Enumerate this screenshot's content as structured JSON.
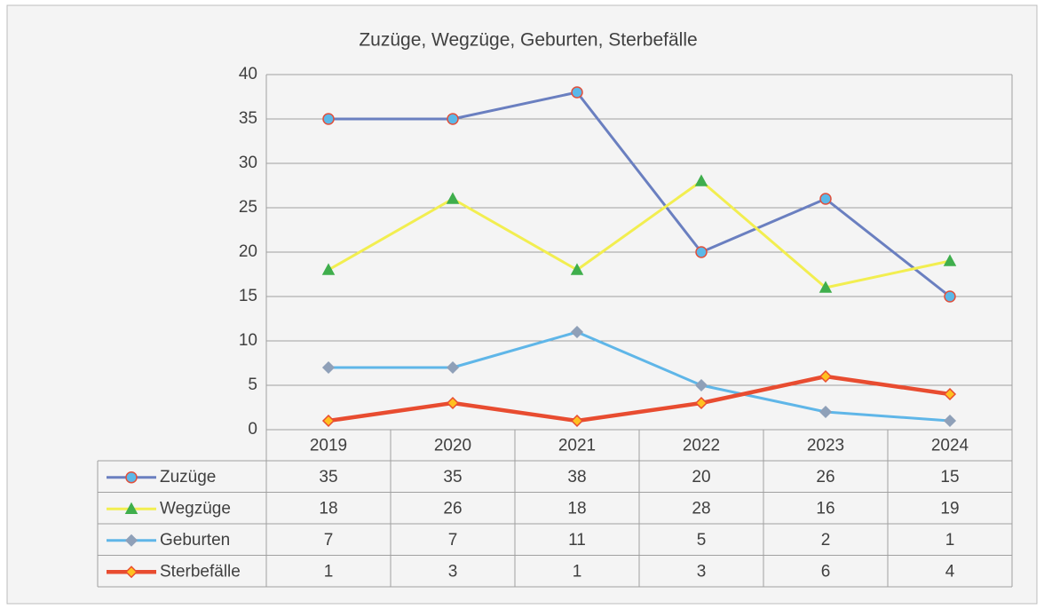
{
  "chart_data": {
    "type": "line",
    "title": "Zuzüge, Wegzüge, Geburten, Sterbefälle",
    "categories": [
      "2019",
      "2020",
      "2021",
      "2022",
      "2023",
      "2024"
    ],
    "ylim": [
      0,
      40
    ],
    "yticks": [
      0,
      5,
      10,
      15,
      20,
      25,
      30,
      35,
      40
    ],
    "grid": true,
    "data_table": true,
    "series": [
      {
        "name": "Zuzüge",
        "color": "#6a7fc0",
        "marker": "circle",
        "marker_fill": "#5bb8e8",
        "marker_stroke": "#e0503c",
        "line_width": 3,
        "values": [
          35,
          35,
          38,
          20,
          26,
          15
        ]
      },
      {
        "name": "Wegzüge",
        "color": "#f2ee50",
        "marker": "triangle",
        "marker_fill": "#3fae4c",
        "marker_stroke": "#3fae4c",
        "line_width": 3,
        "values": [
          18,
          26,
          18,
          28,
          16,
          19
        ]
      },
      {
        "name": "Geburten",
        "color": "#5fb6e8",
        "marker": "diamond",
        "marker_fill": "#8fa0b8",
        "marker_stroke": "#8fa0b8",
        "line_width": 3,
        "values": [
          7,
          7,
          11,
          5,
          2,
          1
        ]
      },
      {
        "name": "Sterbefälle",
        "color": "#e84c30",
        "marker": "diamond",
        "marker_fill": "#ffc020",
        "marker_stroke": "#e84c30",
        "line_width": 4.5,
        "values": [
          1,
          3,
          1,
          3,
          6,
          4
        ]
      }
    ]
  }
}
